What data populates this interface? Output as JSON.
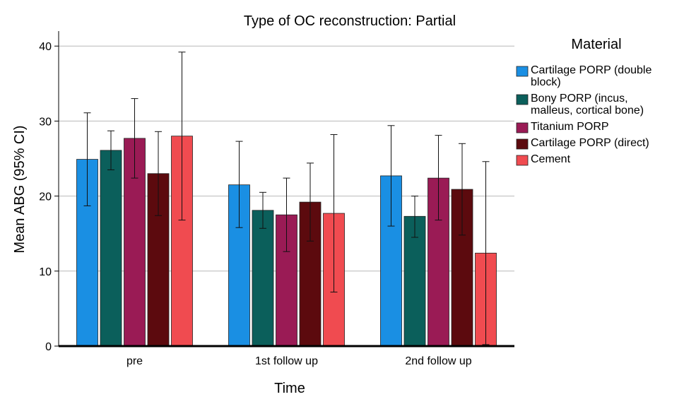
{
  "chart_data": {
    "type": "bar",
    "title": "Type of OC reconstruction: Partial",
    "xlabel": "Time",
    "ylabel": "Mean ABG (95% CI)",
    "categories": [
      "pre",
      "1st follow up",
      "2nd follow up"
    ],
    "ylim": [
      0,
      42
    ],
    "yticks": [
      "0",
      "10",
      "20",
      "30",
      "40"
    ],
    "grid": "horizontal",
    "legend": {
      "title": "Material",
      "placement": "right"
    },
    "series": [
      {
        "name": "Cartilage PORP (double block)",
        "color": "#1a8fe3",
        "values": [
          24.9,
          21.5,
          22.7
        ],
        "ci_low": [
          18.7,
          15.8,
          16.0
        ],
        "ci_high": [
          31.1,
          27.3,
          29.4
        ]
      },
      {
        "name": "Bony PORP (incus, malleus, cortical bone)",
        "color": "#0b5f5b",
        "values": [
          26.1,
          18.1,
          17.3
        ],
        "ci_low": [
          23.5,
          15.7,
          14.5
        ],
        "ci_high": [
          28.7,
          20.5,
          20.0
        ]
      },
      {
        "name": "Titanium PORP",
        "color": "#9a1b55",
        "values": [
          27.7,
          17.5,
          22.4
        ],
        "ci_low": [
          22.4,
          12.6,
          16.8
        ],
        "ci_high": [
          33.0,
          22.4,
          28.1
        ]
      },
      {
        "name": "Cartilage PORP (direct)",
        "color": "#5c0a0e",
        "values": [
          23.0,
          19.2,
          20.9
        ],
        "ci_low": [
          17.4,
          14.0,
          14.8
        ],
        "ci_high": [
          28.6,
          24.4,
          27.0
        ]
      },
      {
        "name": "Cement",
        "color": "#f04b50",
        "values": [
          28.0,
          17.7,
          12.4
        ],
        "ci_low": [
          16.8,
          7.2,
          0.2
        ],
        "ci_high": [
          39.2,
          28.2,
          24.6
        ]
      }
    ]
  }
}
